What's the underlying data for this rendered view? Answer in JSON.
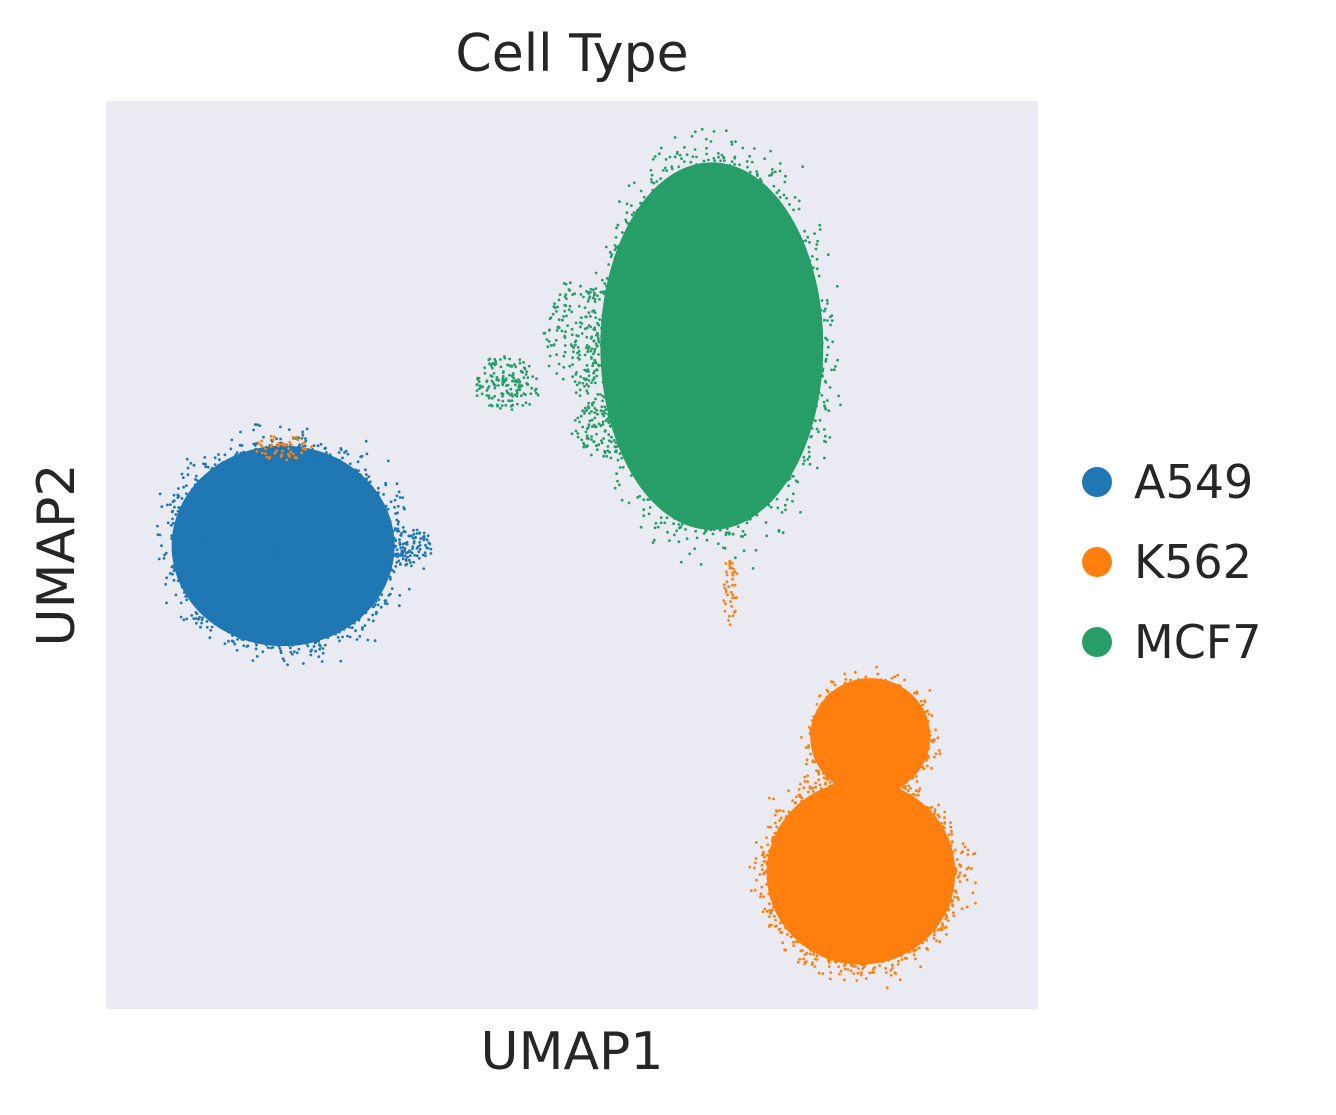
{
  "chart_data": {
    "type": "scatter",
    "title": "Cell Type",
    "xlabel": "UMAP1",
    "ylabel": "UMAP2",
    "xlim": [
      0,
      100
    ],
    "ylim": [
      0,
      100
    ],
    "grid": false,
    "ticks": false,
    "background_color": "#eaeaf2",
    "legend_position": "right",
    "series": [
      {
        "name": "A549",
        "color": "#1f77b4",
        "clusters": [
          {
            "cx": 19,
            "cy": 51,
            "rx": 13,
            "ry": 12,
            "weight": 1.0
          },
          {
            "cx": 32,
            "cy": 51,
            "rx": 3,
            "ry": 2,
            "weight": 0.04
          }
        ]
      },
      {
        "name": "K562",
        "color": "#ff7f0e",
        "clusters": [
          {
            "cx": 81,
            "cy": 15,
            "rx": 11,
            "ry": 11,
            "weight": 1.0
          },
          {
            "cx": 82,
            "cy": 30,
            "rx": 7,
            "ry": 7,
            "weight": 0.35
          },
          {
            "cx": 19,
            "cy": 62,
            "rx": 3,
            "ry": 1.5,
            "weight": 0.02
          },
          {
            "cx": 67,
            "cy": 46,
            "rx": 0.8,
            "ry": 4,
            "weight": 0.01
          }
        ]
      },
      {
        "name": "MCF7",
        "color": "#279e68",
        "clusters": [
          {
            "cx": 65,
            "cy": 73,
            "rx": 13,
            "ry": 22,
            "weight": 1.0
          },
          {
            "cx": 43,
            "cy": 69,
            "rx": 3.5,
            "ry": 3,
            "weight": 0.06
          },
          {
            "cx": 51,
            "cy": 74,
            "rx": 4,
            "ry": 6,
            "weight": 0.08
          },
          {
            "cx": 53,
            "cy": 64,
            "rx": 3,
            "ry": 3,
            "weight": 0.05
          }
        ]
      }
    ]
  }
}
